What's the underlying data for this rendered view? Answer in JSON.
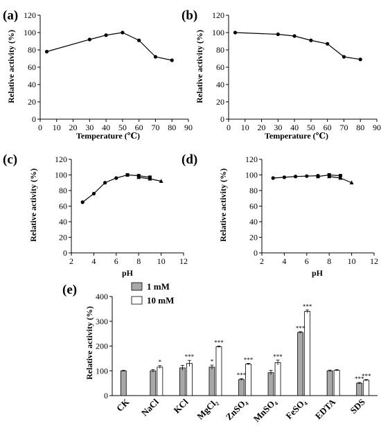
{
  "chart_data": [
    {
      "id": "a",
      "type": "line",
      "panel_label": "(a)",
      "xlabel": "Temperature (℃)",
      "ylabel": "Relative activity (%)",
      "xlim": [
        0,
        90
      ],
      "ylim": [
        0,
        120
      ],
      "xticks": [
        0,
        10,
        20,
        30,
        40,
        50,
        60,
        70,
        80,
        90
      ],
      "yticks": [
        0,
        20,
        40,
        60,
        80,
        100,
        120
      ],
      "series": [
        {
          "marker": "circle",
          "x": [
            4,
            30,
            40,
            50,
            60,
            70,
            80
          ],
          "y": [
            78,
            92,
            97,
            100,
            91,
            72,
            68
          ]
        }
      ]
    },
    {
      "id": "b",
      "type": "line",
      "panel_label": "(b)",
      "xlabel": "Temperature (℃)",
      "ylabel": "Relative activity (%)",
      "xlim": [
        0,
        90
      ],
      "ylim": [
        0,
        120
      ],
      "xticks": [
        0,
        10,
        20,
        30,
        40,
        50,
        60,
        70,
        80,
        90
      ],
      "yticks": [
        0,
        20,
        40,
        60,
        80,
        100,
        120
      ],
      "series": [
        {
          "marker": "circle",
          "x": [
            4,
            30,
            40,
            50,
            60,
            70,
            80
          ],
          "y": [
            100,
            98,
            96,
            91,
            87,
            72,
            69
          ]
        }
      ]
    },
    {
      "id": "c",
      "type": "line",
      "panel_label": "(c)",
      "xlabel": "pH",
      "ylabel": "Relative activity (%)",
      "xlim": [
        2,
        12
      ],
      "ylim": [
        0,
        120
      ],
      "xticks": [
        2,
        4,
        6,
        8,
        10,
        12
      ],
      "yticks": [
        0,
        20,
        40,
        60,
        80,
        100,
        120
      ],
      "series": [
        {
          "marker": "circle",
          "x": [
            3,
            4,
            5,
            6,
            7
          ],
          "y": [
            65,
            76,
            90,
            96,
            100
          ]
        },
        {
          "marker": "square",
          "x": [
            7,
            8,
            9
          ],
          "y": [
            100,
            99,
            97
          ]
        },
        {
          "marker": "triangle",
          "x": [
            8,
            9,
            10
          ],
          "y": [
            97,
            95,
            92
          ]
        }
      ]
    },
    {
      "id": "d",
      "type": "line",
      "panel_label": "(d)",
      "xlabel": "pH",
      "ylabel": "Relative activity (%)",
      "xlim": [
        2,
        12
      ],
      "ylim": [
        0,
        120
      ],
      "xticks": [
        2,
        4,
        6,
        8,
        10,
        12
      ],
      "yticks": [
        0,
        20,
        40,
        60,
        80,
        100,
        120
      ],
      "series": [
        {
          "marker": "circle",
          "x": [
            3,
            4,
            5,
            6,
            7
          ],
          "y": [
            96,
            97,
            98,
            98.5,
            99
          ]
        },
        {
          "marker": "square",
          "x": [
            7,
            8,
            9
          ],
          "y": [
            98,
            100,
            99
          ]
        },
        {
          "marker": "triangle",
          "x": [
            8,
            9,
            10
          ],
          "y": [
            98,
            96,
            90
          ]
        }
      ]
    },
    {
      "id": "e",
      "type": "bar",
      "panel_label": "(e)",
      "xlabel": "",
      "ylabel": "Relative activity (%)",
      "ylim": [
        0,
        400
      ],
      "yticks": [
        0,
        100,
        200,
        300,
        400
      ],
      "categories": [
        "CK",
        "NaCl",
        "KCl",
        "MgCl₂",
        "ZnSO₄",
        "MnSO₄",
        "FeSO₄",
        "EDTA",
        "SDS"
      ],
      "legend_position": "top-left",
      "series": [
        {
          "name": "1 mM",
          "color": "#a8a8a8",
          "values": [
            100,
            100,
            112,
            115,
            65,
            93,
            255,
            100,
            50
          ],
          "errors": [
            2,
            5,
            10,
            8,
            3,
            9,
            3,
            3,
            3
          ],
          "significance": [
            "",
            "",
            "",
            "*",
            "***",
            "",
            "***",
            "",
            "***"
          ]
        },
        {
          "name": "10 mM",
          "color": "#ffffff",
          "values": [
            null,
            115,
            130,
            197,
            127,
            133,
            340,
            102,
            62
          ],
          "errors": [
            null,
            6,
            12,
            3,
            3,
            10,
            6,
            3,
            3
          ],
          "significance": [
            "",
            "*",
            "***",
            "***",
            "***",
            "***",
            "***",
            "",
            "***"
          ]
        }
      ]
    }
  ]
}
